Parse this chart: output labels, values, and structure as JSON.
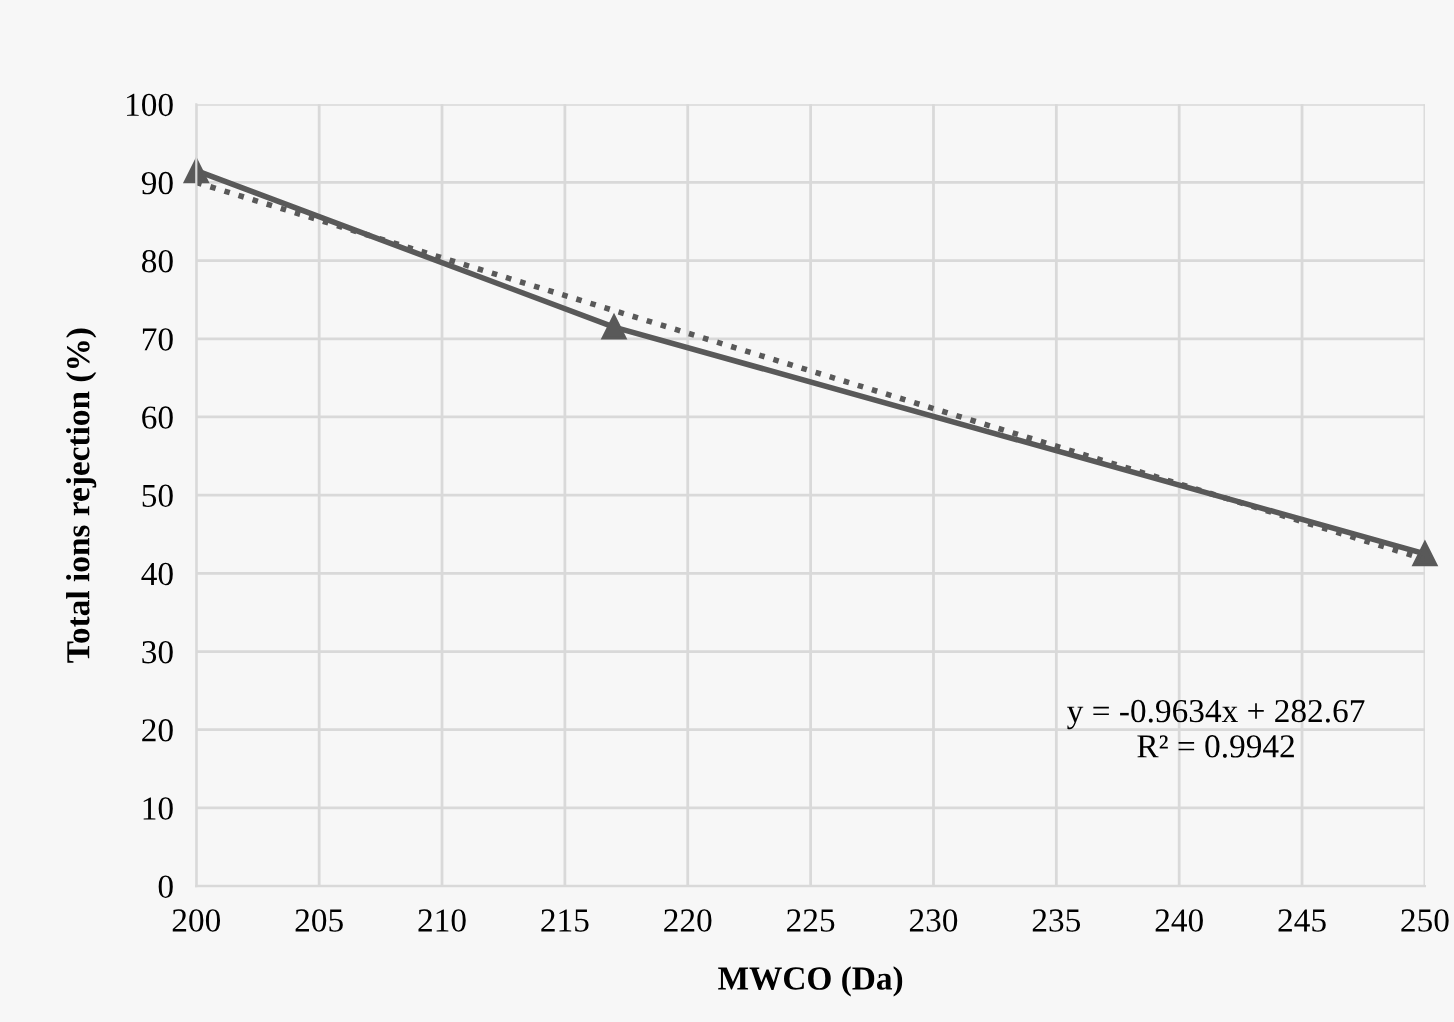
{
  "chart_data": {
    "type": "line",
    "xlabel": "MWCO (Da)",
    "ylabel": "Total ions rejection (%)",
    "xlim": [
      200,
      250
    ],
    "xticks": [
      200,
      205,
      210,
      215,
      220,
      225,
      230,
      235,
      240,
      245,
      250
    ],
    "ylim": [
      0,
      100
    ],
    "yticks": [
      0,
      10,
      20,
      30,
      40,
      50,
      60,
      70,
      80,
      90,
      100
    ],
    "grid": true,
    "series": [
      {
        "x": [
          200,
          217,
          250
        ],
        "values": [
          91.5,
          71.5,
          42.5
        ],
        "color": "#595959",
        "marker": "triangle",
        "line_style": "solid"
      },
      {
        "type": "line",
        "x": [
          200,
          250
        ],
        "values": [
          90.0,
          41.8
        ],
        "color": "#595959",
        "marker": "none",
        "line_style": "dotted"
      }
    ],
    "annotations": [
      "y = -0.9634x + 282.67",
      "R² = 0.9942"
    ]
  }
}
